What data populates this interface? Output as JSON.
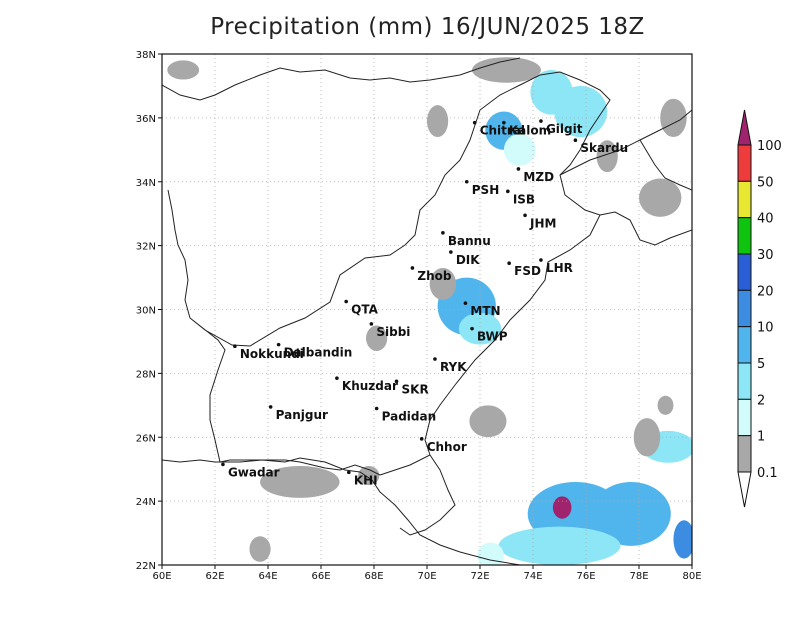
{
  "title": "Precipitation (mm) 16/JUN/2025 18Z",
  "map": {
    "lon_range": [
      60,
      80
    ],
    "lat_range": [
      22,
      38
    ],
    "lon_ticks": [
      "60E",
      "62E",
      "64E",
      "66E",
      "68E",
      "70E",
      "72E",
      "74E",
      "76E",
      "78E",
      "80E"
    ],
    "lat_ticks": [
      "22N",
      "24N",
      "26N",
      "28N",
      "30N",
      "32N",
      "34N",
      "36N",
      "38N"
    ],
    "grid": true,
    "cities": [
      {
        "name": "Chitral",
        "lon": 71.8,
        "lat": 35.85
      },
      {
        "name": "Gilgit",
        "lon": 74.3,
        "lat": 35.9
      },
      {
        "name": "Kalom",
        "lon": 72.9,
        "lat": 35.85
      },
      {
        "name": "Skardu",
        "lon": 75.6,
        "lat": 35.3
      },
      {
        "name": "MZD",
        "lon": 73.45,
        "lat": 34.4
      },
      {
        "name": "PSH",
        "lon": 71.5,
        "lat": 34.0
      },
      {
        "name": "ISB",
        "lon": 73.05,
        "lat": 33.7
      },
      {
        "name": "JHM",
        "lon": 73.7,
        "lat": 32.95
      },
      {
        "name": "Bannu",
        "lon": 70.6,
        "lat": 32.4
      },
      {
        "name": "DIK",
        "lon": 70.9,
        "lat": 31.8
      },
      {
        "name": "FSD",
        "lon": 73.1,
        "lat": 31.45
      },
      {
        "name": "LHR",
        "lon": 74.3,
        "lat": 31.55
      },
      {
        "name": "Zhob",
        "lon": 69.45,
        "lat": 31.3
      },
      {
        "name": "QTA",
        "lon": 66.95,
        "lat": 30.25
      },
      {
        "name": "MTN",
        "lon": 71.45,
        "lat": 30.2
      },
      {
        "name": "Sibbi",
        "lon": 67.9,
        "lat": 29.55
      },
      {
        "name": "BWP",
        "lon": 71.7,
        "lat": 29.4
      },
      {
        "name": "Dalbandin",
        "lon": 64.4,
        "lat": 28.9
      },
      {
        "name": "Nokkundi",
        "lon": 62.75,
        "lat": 28.85
      },
      {
        "name": "RYK",
        "lon": 70.3,
        "lat": 28.45
      },
      {
        "name": "SKR",
        "lon": 68.85,
        "lat": 27.75
      },
      {
        "name": "Khuzdar",
        "lon": 66.6,
        "lat": 27.85
      },
      {
        "name": "Padidan",
        "lon": 68.1,
        "lat": 26.9
      },
      {
        "name": "Panjgur",
        "lon": 64.1,
        "lat": 26.95
      },
      {
        "name": "Chhor",
        "lon": 69.8,
        "lat": 25.95
      },
      {
        "name": "KHI",
        "lon": 67.05,
        "lat": 24.9
      },
      {
        "name": "Gwadar",
        "lon": 62.3,
        "lat": 25.15
      }
    ]
  },
  "legend": {
    "levels": [
      "0.1",
      "1",
      "2",
      "5",
      "10",
      "20",
      "30",
      "40",
      "50",
      "100"
    ],
    "colors": [
      "#a8a8a8",
      "#d2fbfb",
      "#8ce6f5",
      "#50b4ed",
      "#3c8ce1",
      "#2a5ed7",
      "#0fc40f",
      "#e8e832",
      "#ee3c3c",
      "#a0236e"
    ]
  },
  "precip_areas": [
    {
      "lon": 72.9,
      "lat": 35.6,
      "rx": 0.7,
      "ry": 0.6,
      "level": 3
    },
    {
      "lon": 74.7,
      "lat": 36.8,
      "rx": 0.8,
      "ry": 0.7,
      "level": 2
    },
    {
      "lon": 75.8,
      "lat": 36.2,
      "rx": 1.0,
      "ry": 0.8,
      "level": 2
    },
    {
      "lon": 73.5,
      "lat": 35.0,
      "rx": 0.6,
      "ry": 0.5,
      "level": 1
    },
    {
      "lon": 71.5,
      "lat": 30.1,
      "rx": 1.1,
      "ry": 0.9,
      "level": 3
    },
    {
      "lon": 72.0,
      "lat": 29.4,
      "rx": 0.8,
      "ry": 0.5,
      "level": 2
    },
    {
      "lon": 75.6,
      "lat": 23.6,
      "rx": 1.8,
      "ry": 1.0,
      "level": 3
    },
    {
      "lon": 77.7,
      "lat": 23.6,
      "rx": 1.5,
      "ry": 1.0,
      "level": 3
    },
    {
      "lon": 79.1,
      "lat": 25.7,
      "rx": 1.0,
      "ry": 0.5,
      "level": 2
    },
    {
      "lon": 75.0,
      "lat": 22.6,
      "rx": 2.3,
      "ry": 0.6,
      "level": 2
    },
    {
      "lon": 79.7,
      "lat": 22.8,
      "rx": 0.4,
      "ry": 0.6,
      "level": 4
    },
    {
      "lon": 75.1,
      "lat": 23.8,
      "rx": 0.35,
      "ry": 0.35,
      "level": 9
    },
    {
      "lon": 65.2,
      "lat": 24.6,
      "rx": 1.5,
      "ry": 0.5,
      "level": 0
    },
    {
      "lon": 60.8,
      "lat": 37.5,
      "rx": 0.6,
      "ry": 0.3,
      "level": 0
    },
    {
      "lon": 70.4,
      "lat": 35.9,
      "rx": 0.4,
      "ry": 0.5,
      "level": 0
    },
    {
      "lon": 76.8,
      "lat": 34.8,
      "rx": 0.4,
      "ry": 0.5,
      "level": 0
    },
    {
      "lon": 78.8,
      "lat": 33.5,
      "rx": 0.8,
      "ry": 0.6,
      "level": 0
    },
    {
      "lon": 79.3,
      "lat": 36.0,
      "rx": 0.5,
      "ry": 0.6,
      "level": 0
    },
    {
      "lon": 73.0,
      "lat": 37.5,
      "rx": 1.3,
      "ry": 0.4,
      "level": 0
    },
    {
      "lon": 70.6,
      "lat": 30.8,
      "rx": 0.5,
      "ry": 0.5,
      "level": 0
    },
    {
      "lon": 68.1,
      "lat": 29.1,
      "rx": 0.4,
      "ry": 0.4,
      "level": 0
    },
    {
      "lon": 72.3,
      "lat": 26.5,
      "rx": 0.7,
      "ry": 0.5,
      "level": 0
    },
    {
      "lon": 78.3,
      "lat": 26.0,
      "rx": 0.5,
      "ry": 0.6,
      "level": 0
    },
    {
      "lon": 79.0,
      "lat": 27.0,
      "rx": 0.3,
      "ry": 0.3,
      "level": 0
    },
    {
      "lon": 63.7,
      "lat": 22.5,
      "rx": 0.4,
      "ry": 0.4,
      "level": 0
    },
    {
      "lon": 67.8,
      "lat": 24.8,
      "rx": 0.4,
      "ry": 0.3,
      "level": 0
    },
    {
      "lon": 72.4,
      "lat": 22.3,
      "rx": 0.5,
      "ry": 0.4,
      "level": 1
    }
  ]
}
